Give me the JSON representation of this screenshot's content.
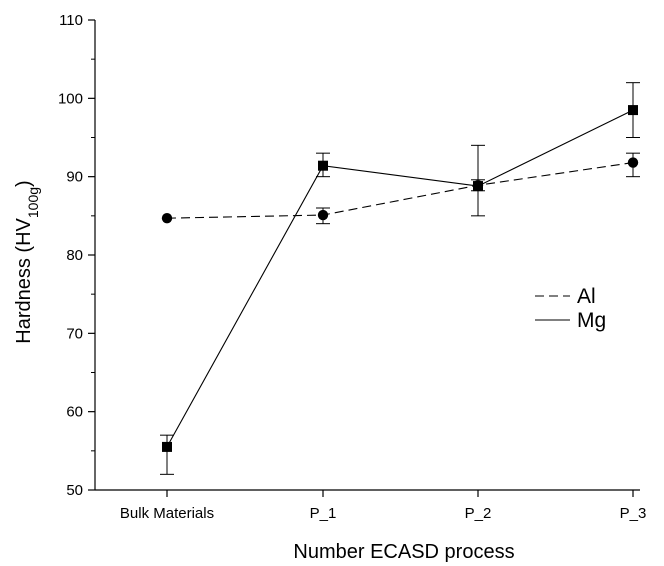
{
  "chart_data": {
    "type": "line",
    "title": "",
    "xlabel": "Number ECASD process",
    "ylabel": {
      "main": "Hardness (HV",
      "subscript": "100g",
      "close": ")"
    },
    "categories": [
      "Bulk Materials",
      "P_1",
      "P_2",
      "P_3"
    ],
    "ylim": [
      50,
      110
    ],
    "yticks": [
      50,
      60,
      70,
      80,
      90,
      100,
      110
    ],
    "grid": false,
    "legend_position": "right-middle",
    "series": [
      {
        "name": "Al",
        "line_style": "dashed",
        "marker": "circle",
        "color": "#000000",
        "values": [
          84.7,
          85.1,
          88.9,
          91.8
        ],
        "error_low": [
          null,
          84.0,
          88.2,
          90.0
        ],
        "error_high": [
          null,
          86.0,
          89.6,
          93.0
        ]
      },
      {
        "name": "Mg",
        "line_style": "solid",
        "marker": "square",
        "color": "#000000",
        "values": [
          55.5,
          91.4,
          88.8,
          98.5
        ],
        "error_low": [
          52.0,
          90.0,
          85.0,
          95.0
        ],
        "error_high": [
          57.0,
          93.0,
          94.0,
          102.0
        ]
      }
    ]
  }
}
